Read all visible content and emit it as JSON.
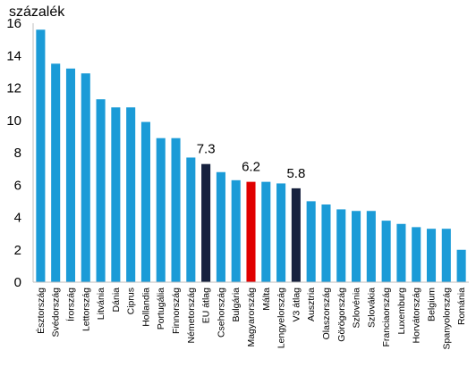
{
  "chart_data": {
    "type": "bar",
    "title": "",
    "xlabel": "",
    "ylabel": "százalék",
    "ylim": [
      0,
      16
    ],
    "yticks": [
      0,
      2,
      4,
      6,
      8,
      10,
      12,
      14,
      16
    ],
    "grid": false,
    "legend": "none",
    "categories": [
      "Észtország",
      "Svédország",
      "Írország",
      "Lettország",
      "Litvánia",
      "Dánia",
      "Ciprus",
      "Hollandia",
      "Portugália",
      "Finnország",
      "Németország",
      "EU átlag",
      "Csehország",
      "Bulgária",
      "Magyarország",
      "Málta",
      "Lengyelország",
      "V3 átlag",
      "Ausztria",
      "Olaszország",
      "Görögország",
      "Szlovénia",
      "Szlovákia",
      "Franciaország",
      "Luxemburg",
      "Horvátország",
      "Belgium",
      "Spanyolország",
      "Románia"
    ],
    "values": [
      15.6,
      13.5,
      13.2,
      12.9,
      11.3,
      10.8,
      10.8,
      9.9,
      8.9,
      8.9,
      7.7,
      7.3,
      6.8,
      6.3,
      6.2,
      6.2,
      6.1,
      5.8,
      5.0,
      4.8,
      4.5,
      4.4,
      4.4,
      3.8,
      3.6,
      3.4,
      3.3,
      3.3,
      2.0
    ],
    "bar_colors": {
      "default": "#1B9BD7",
      "eu": "#16213E",
      "hungary": "#E00000",
      "v3": "#16213E"
    },
    "highlight": {
      "EU átlag": "eu",
      "Magyarország": "hungary",
      "V3 átlag": "v3"
    },
    "data_labels": [
      {
        "category": "EU átlag",
        "text": "7.3"
      },
      {
        "category": "Magyarország",
        "text": "6.2"
      },
      {
        "category": "V3 átlag",
        "text": "5.8"
      }
    ]
  }
}
